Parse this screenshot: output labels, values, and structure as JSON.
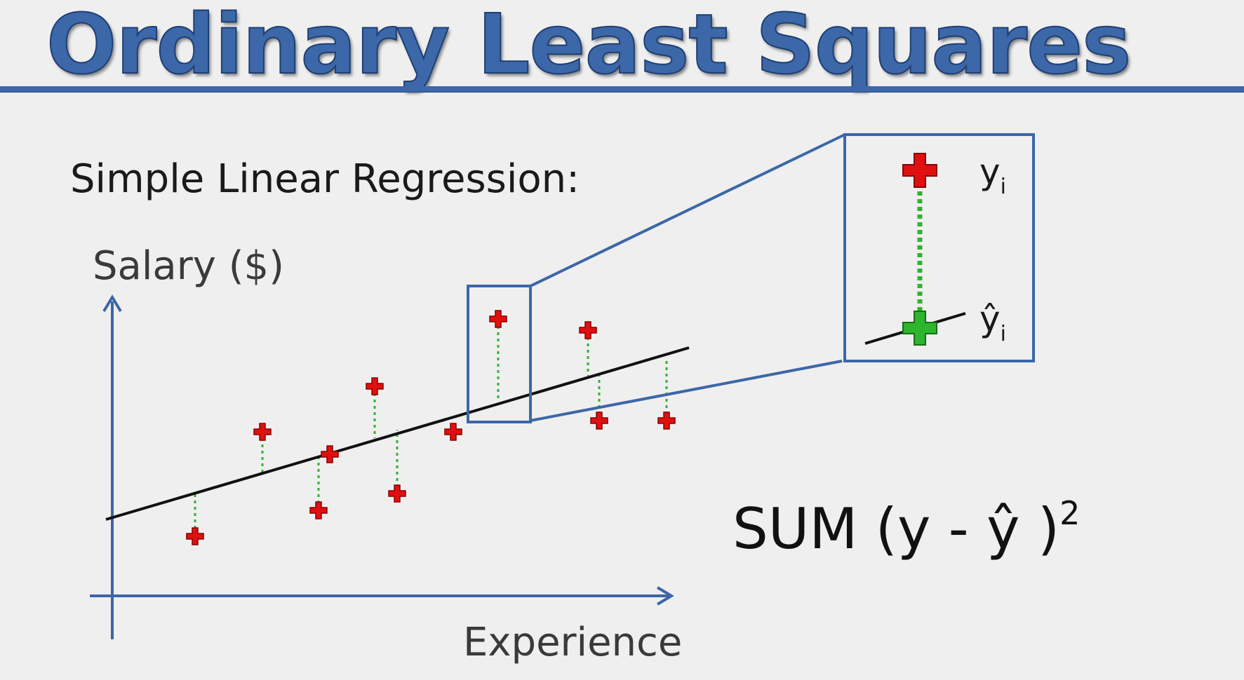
{
  "title": "Ordinary Least Squares",
  "subtitle": "Simple Linear Regression:",
  "y_axis_label": "Salary ($)",
  "x_axis_label": "Experience",
  "inset": {
    "observed_label": "y",
    "observed_sub": "i",
    "predicted_label": "ŷ",
    "predicted_sub": "i"
  },
  "formula": {
    "text": "SUM (y - ŷ )",
    "exponent": "2"
  },
  "colors": {
    "accent_blue": "#3c67a8",
    "observed_red": "#e01010",
    "predicted_green": "#2db52d",
    "residual_green": "#33b033",
    "line_black": "#111111"
  }
}
